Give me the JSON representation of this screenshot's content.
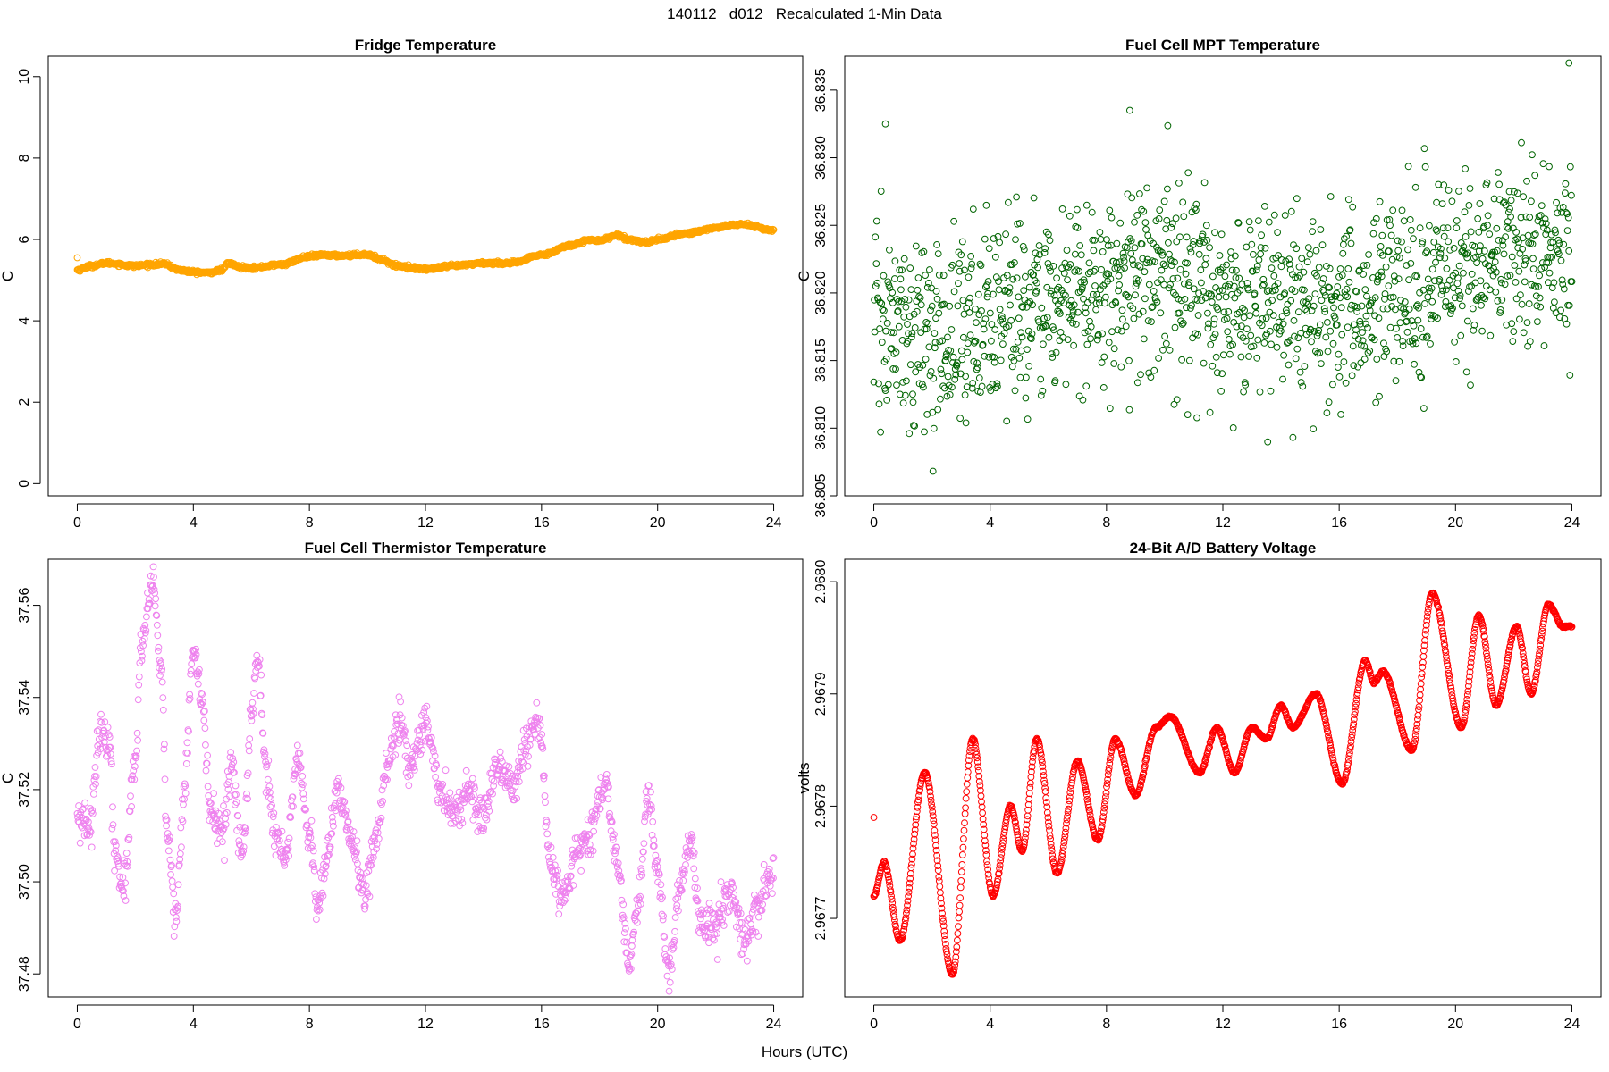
{
  "title": "140112   d012   Recalculated 1-Min Data",
  "xlabel": "Hours (UTC)",
  "chart_data": [
    {
      "type": "scatter",
      "title": "Fridge Temperature",
      "ylabel": "C",
      "color": "#ffa500",
      "xlim": [
        -1,
        25
      ],
      "ylim": [
        -0.3,
        10.5
      ],
      "xticks": [
        0,
        4,
        8,
        12,
        16,
        20,
        24
      ],
      "yticks": [
        0,
        2,
        4,
        6,
        8,
        10
      ],
      "ytick_labels": [
        "0",
        "2",
        "4",
        "6",
        "8",
        "10"
      ],
      "points": 1440,
      "outliers": [
        [
          0,
          5.55
        ]
      ],
      "trend": [
        [
          0,
          5.25
        ],
        [
          0.5,
          5.35
        ],
        [
          1,
          5.42
        ],
        [
          2,
          5.35
        ],
        [
          2.5,
          5.38
        ],
        [
          3,
          5.4
        ],
        [
          3.5,
          5.25
        ],
        [
          4,
          5.2
        ],
        [
          4.5,
          5.18
        ],
        [
          5,
          5.25
        ],
        [
          5.2,
          5.42
        ],
        [
          5.6,
          5.32
        ],
        [
          6,
          5.3
        ],
        [
          7,
          5.38
        ],
        [
          8,
          5.58
        ],
        [
          8.5,
          5.62
        ],
        [
          9,
          5.6
        ],
        [
          10,
          5.63
        ],
        [
          10.5,
          5.5
        ],
        [
          11,
          5.35
        ],
        [
          12,
          5.27
        ],
        [
          13,
          5.35
        ],
        [
          14,
          5.42
        ],
        [
          15,
          5.42
        ],
        [
          16,
          5.62
        ],
        [
          17,
          5.85
        ],
        [
          17.5,
          5.97
        ],
        [
          18,
          5.98
        ],
        [
          18.6,
          6.1
        ],
        [
          19,
          6.0
        ],
        [
          19.6,
          5.93
        ],
        [
          20,
          6.0
        ],
        [
          21,
          6.15
        ],
        [
          22,
          6.28
        ],
        [
          22.5,
          6.35
        ],
        [
          23,
          6.37
        ],
        [
          24,
          6.22
        ]
      ],
      "noise_sd": 0.02
    },
    {
      "type": "scatter",
      "title": "Fuel Cell MPT Temperature",
      "ylabel": "C",
      "color": "#006400",
      "xlim": [
        -1,
        25
      ],
      "ylim": [
        36.805,
        36.8375
      ],
      "xticks": [
        0,
        4,
        8,
        12,
        16,
        20,
        24
      ],
      "yticks": [
        36.805,
        36.81,
        36.815,
        36.82,
        36.825,
        36.83,
        36.835
      ],
      "ytick_labels": [
        "36.805",
        "36.810",
        "36.815",
        "36.820",
        "36.825",
        "36.830",
        "36.835"
      ],
      "points": 1440,
      "outliers": [
        [
          0.4,
          36.8325
        ],
        [
          8.8,
          36.8335
        ],
        [
          23.9,
          36.837
        ]
      ],
      "trend": [
        [
          0,
          36.8175
        ],
        [
          2,
          36.8165
        ],
        [
          4,
          36.8185
        ],
        [
          6,
          36.819
        ],
        [
          8,
          36.8205
        ],
        [
          9,
          36.8215
        ],
        [
          12,
          36.8195
        ],
        [
          16,
          36.8185
        ],
        [
          18,
          36.82
        ],
        [
          20,
          36.8215
        ],
        [
          22,
          36.8225
        ],
        [
          24,
          36.823
        ]
      ],
      "noise_sd": 0.0035
    },
    {
      "type": "scatter",
      "title": "Fuel Cell Thermistor Temperature",
      "ylabel": "C",
      "color": "#ee82ee",
      "xlim": [
        -1,
        25
      ],
      "ylim": [
        37.475,
        37.57
      ],
      "xticks": [
        0,
        4,
        8,
        12,
        16,
        20,
        24
      ],
      "yticks": [
        37.48,
        37.5,
        37.52,
        37.54,
        37.56
      ],
      "ytick_labels": [
        "37.48",
        "37.50",
        "37.52",
        "37.54",
        "37.56"
      ],
      "points": 1440,
      "outliers": [],
      "trend": [
        [
          0,
          37.513
        ],
        [
          0.4,
          37.512
        ],
        [
          0.8,
          37.533
        ],
        [
          1.1,
          37.53
        ],
        [
          1.3,
          37.505
        ],
        [
          1.6,
          37.5
        ],
        [
          2,
          37.525
        ],
        [
          2.2,
          37.55
        ],
        [
          2.6,
          37.565
        ],
        [
          2.9,
          37.545
        ],
        [
          3.1,
          37.51
        ],
        [
          3.4,
          37.492
        ],
        [
          3.7,
          37.52
        ],
        [
          4,
          37.551
        ],
        [
          4.3,
          37.54
        ],
        [
          4.6,
          37.515
        ],
        [
          5,
          37.51
        ],
        [
          5.3,
          37.525
        ],
        [
          5.7,
          37.505
        ],
        [
          6,
          37.535
        ],
        [
          6.2,
          37.549
        ],
        [
          6.5,
          37.525
        ],
        [
          6.8,
          37.51
        ],
        [
          7.2,
          37.505
        ],
        [
          7.6,
          37.528
        ],
        [
          8,
          37.51
        ],
        [
          8.3,
          37.495
        ],
        [
          8.6,
          37.505
        ],
        [
          9,
          37.52
        ],
        [
          9.5,
          37.508
        ],
        [
          9.9,
          37.497
        ],
        [
          10.3,
          37.51
        ],
        [
          10.7,
          37.525
        ],
        [
          11.1,
          37.535
        ],
        [
          11.5,
          37.525
        ],
        [
          12,
          37.535
        ],
        [
          12.5,
          37.52
        ],
        [
          13,
          37.515
        ],
        [
          13.5,
          37.52
        ],
        [
          14,
          37.515
        ],
        [
          14.5,
          37.525
        ],
        [
          15,
          37.52
        ],
        [
          15.5,
          37.53
        ],
        [
          15.9,
          37.535
        ],
        [
          16.3,
          37.505
        ],
        [
          16.7,
          37.495
        ],
        [
          17.2,
          37.505
        ],
        [
          17.6,
          37.51
        ],
        [
          18.2,
          37.52
        ],
        [
          18.6,
          37.505
        ],
        [
          19,
          37.483
        ],
        [
          19.3,
          37.495
        ],
        [
          19.7,
          37.52
        ],
        [
          20,
          37.5
        ],
        [
          20.4,
          37.48
        ],
        [
          20.8,
          37.5
        ],
        [
          21.1,
          37.51
        ],
        [
          21.5,
          37.492
        ],
        [
          22,
          37.49
        ],
        [
          22.5,
          37.498
        ],
        [
          23,
          37.487
        ],
        [
          23.5,
          37.495
        ],
        [
          24,
          37.502
        ]
      ],
      "noise_sd": 0.0022
    },
    {
      "type": "scatter",
      "title": "24-Bit A/D Battery Voltage",
      "ylabel": "volts",
      "color": "#ff0000",
      "xlim": [
        -1,
        25
      ],
      "ylim": [
        2.96763,
        2.96802
      ],
      "xticks": [
        0,
        4,
        8,
        12,
        16,
        20,
        24
      ],
      "yticks": [
        2.9677,
        2.9678,
        2.9679,
        2.968
      ],
      "ytick_labels": [
        "2.9677",
        "2.9678",
        "2.9679",
        "2.9680"
      ],
      "points": 1440,
      "outliers": [
        [
          0,
          2.96779
        ]
      ],
      "trend": [
        [
          0,
          2.96772
        ],
        [
          0.35,
          2.96775
        ],
        [
          0.9,
          2.96768
        ],
        [
          1.75,
          2.96783
        ],
        [
          2.7,
          2.96765
        ],
        [
          3.4,
          2.96786
        ],
        [
          4.1,
          2.96772
        ],
        [
          4.7,
          2.9678
        ],
        [
          5.1,
          2.96776
        ],
        [
          5.6,
          2.96786
        ],
        [
          6.3,
          2.96774
        ],
        [
          7,
          2.96784
        ],
        [
          7.7,
          2.96777
        ],
        [
          8.3,
          2.96786
        ],
        [
          9,
          2.96781
        ],
        [
          9.7,
          2.96787
        ],
        [
          10.2,
          2.96788
        ],
        [
          11.2,
          2.96783
        ],
        [
          11.8,
          2.96787
        ],
        [
          12.4,
          2.96783
        ],
        [
          13,
          2.96787
        ],
        [
          13.5,
          2.96786
        ],
        [
          14,
          2.96789
        ],
        [
          14.4,
          2.96787
        ],
        [
          15.2,
          2.9679
        ],
        [
          16.1,
          2.96782
        ],
        [
          16.9,
          2.96793
        ],
        [
          17.2,
          2.96791
        ],
        [
          17.5,
          2.96792
        ],
        [
          18.5,
          2.96785
        ],
        [
          19.2,
          2.96799
        ],
        [
          20.2,
          2.96787
        ],
        [
          20.8,
          2.96797
        ],
        [
          21.4,
          2.96789
        ],
        [
          22.1,
          2.96796
        ],
        [
          22.6,
          2.9679
        ],
        [
          23.2,
          2.96798
        ],
        [
          23.7,
          2.96796
        ],
        [
          24,
          2.96796
        ]
      ],
      "noise_sd": 5e-07
    }
  ]
}
